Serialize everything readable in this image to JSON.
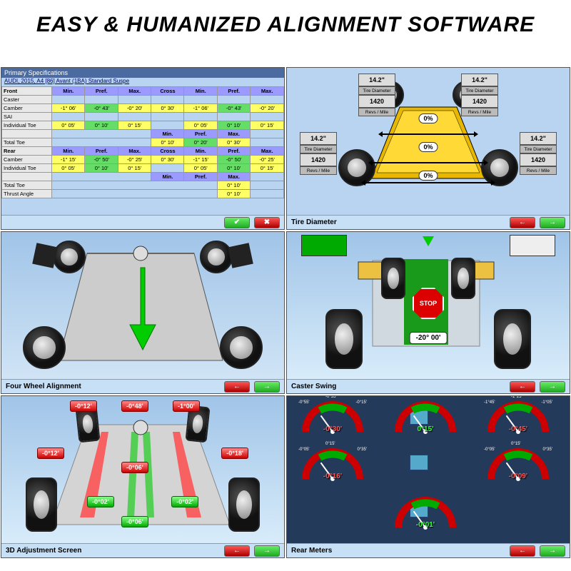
{
  "title": "EASY & HUMANIZED ALIGNMENT SOFTWARE",
  "panel1": {
    "header": "Primary Specifications",
    "vehicle": "AUDI, 2015, A4 [86] Avant (1BA) Standard Suspe",
    "front_label": "Front",
    "rear_label": "Rear",
    "cols": [
      "Min.",
      "Pref.",
      "Max.",
      "Cross",
      "Min.",
      "Pref.",
      "Max."
    ],
    "rows_front": [
      {
        "name": "Caster",
        "vals": [
          "",
          "",
          "",
          "",
          "",
          "",
          ""
        ]
      },
      {
        "name": "Camber",
        "vals": [
          "-1° 06'",
          "-0° 43'",
          "-0° 20'",
          "0° 30'",
          "-1° 06'",
          "-0° 43'",
          "-0° 20'"
        ]
      },
      {
        "name": "SAI",
        "vals": [
          "",
          "",
          "",
          "",
          "",
          "",
          ""
        ]
      },
      {
        "name": "Individual Toe",
        "vals": [
          "0° 05'",
          "0° 10'",
          "0° 15'",
          "",
          "0° 05'",
          "0° 10'",
          "0° 15'"
        ]
      }
    ],
    "front_total": {
      "name": "Total Toe",
      "sub": [
        "Min.",
        "Pref.",
        "Max."
      ],
      "vals": [
        "0° 10'",
        "0° 20'",
        "0° 30'"
      ]
    },
    "rows_rear": [
      {
        "name": "Camber",
        "vals": [
          "-1° 15'",
          "-0° 50'",
          "-0° 25'",
          "0° 30'",
          "-1° 15'",
          "-0° 50'",
          "-0° 25'"
        ]
      },
      {
        "name": "Individual Toe",
        "vals": [
          "0° 05'",
          "0° 10'",
          "0° 15'",
          "",
          "0° 05'",
          "0° 10'",
          "0° 15'"
        ]
      }
    ],
    "rear_total": {
      "name": "Total Toe",
      "vals": [
        "",
        "",
        "0° 10'"
      ]
    },
    "thrust": {
      "name": "Thrust Angle",
      "vals": [
        "",
        "",
        "0° 10'"
      ]
    }
  },
  "panel2": {
    "title": "Tire Diameter",
    "diameter": "14.2\"",
    "dia_label": "Tire Diameter",
    "revs": "1420",
    "revs_label": "Revs / Mile",
    "pct": "0%"
  },
  "panel3": {
    "title": "Four Wheel Alignment"
  },
  "panel4": {
    "title": "Caster Swing",
    "stop": "STOP",
    "reading": "-20° 00'"
  },
  "panel5": {
    "title": "3D Adjustment Screen",
    "top": [
      "-0°12'",
      "-0°48'",
      "-1°00'"
    ],
    "left_mid": "-0°12'",
    "right_mid": "-0°18'",
    "center": "-0°06'",
    "bottom_l": "-0°02'",
    "bottom_r": "-0°02'",
    "bottom_c": "-0°06'"
  },
  "panel6": {
    "title": "Rear Meters",
    "gauges": [
      {
        "val": "-0°30'",
        "color": "red",
        "ticks": [
          "-0°55'",
          "-0°35'",
          "-0°15'"
        ]
      },
      {
        "val": "0°15'",
        "color": "grn",
        "ticks": [
          "",
          "",
          ""
        ]
      },
      {
        "val": "-0°45'",
        "color": "red",
        "ticks": [
          "-1°45'",
          "-1°25'",
          "-1°05'"
        ]
      },
      {
        "val": "-0°16'",
        "color": "red",
        "ticks": [
          "-0°05'",
          "0°15'",
          "0°35'"
        ]
      },
      {
        "val": "-0°09'",
        "color": "red",
        "ticks": [
          "-0°05'",
          "0°15'",
          "0°35'"
        ]
      },
      {
        "val": "-0°01'",
        "color": "grn",
        "ticks": [
          "",
          "",
          ""
        ]
      }
    ]
  },
  "colors": {
    "panel_bg": "#b8d4f0",
    "header_blue": "#4a6aa0",
    "cell_yellow": "#ffff66",
    "cell_green": "#66dd66",
    "arrow_green": "#00cc00",
    "stop_red": "#dd0000",
    "meters_bg": "#233a5a"
  }
}
